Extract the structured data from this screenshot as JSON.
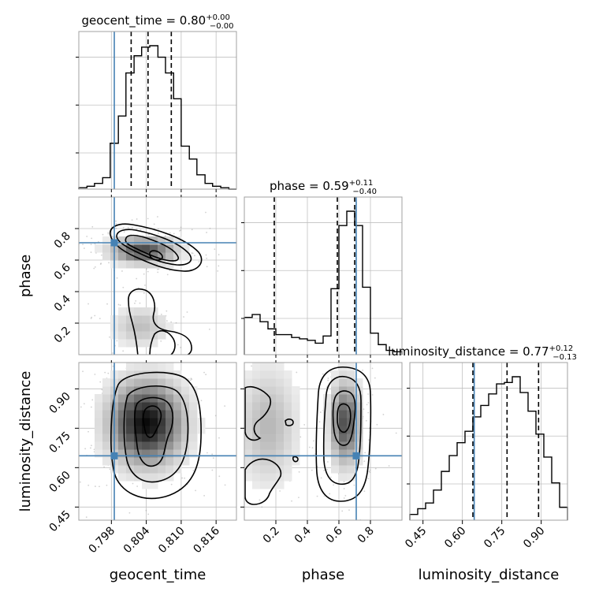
{
  "chart_data": {
    "type": "corner",
    "parameters": [
      "geocent_time",
      "phase",
      "luminosity_distance"
    ],
    "titles": [
      {
        "name": "geocent_time",
        "value": "0.80",
        "plus": "+0.00",
        "minus": "−0.00"
      },
      {
        "name": "phase",
        "value": "0.59",
        "plus": "+0.11",
        "minus": "−0.40"
      },
      {
        "name": "luminosity_distance",
        "value": "0.77",
        "plus": "+0.12",
        "minus": "−0.13"
      }
    ],
    "axis_labels": {
      "x": [
        "geocent_time",
        "phase",
        "luminosity_distance"
      ],
      "y": [
        "phase",
        "luminosity_distance"
      ]
    },
    "ranges": {
      "geocent_time": [
        0.7924,
        0.8195
      ],
      "phase": [
        0.0,
        1.0
      ],
      "luminosity_distance": [
        0.4,
        1.0
      ]
    },
    "ticks": {
      "geocent_time": [
        "0.798",
        "0.804",
        "0.810",
        "0.816"
      ],
      "phase": [
        "0.2",
        "0.4",
        "0.6",
        "0.8"
      ],
      "luminosity_distance": [
        "0.45",
        "0.60",
        "0.75",
        "0.90"
      ]
    },
    "truths": {
      "geocent_time": 0.7985,
      "phase": 0.71,
      "luminosity_distance": 0.645
    },
    "quantiles": {
      "geocent_time": [
        0.8014,
        0.8043,
        0.8083
      ],
      "phase": [
        0.19,
        0.59,
        0.7
      ],
      "luminosity_distance": [
        0.64,
        0.77,
        0.89
      ]
    },
    "histograms": {
      "geocent_time": {
        "edges": [
          0.7924,
          0.7938,
          0.7951,
          0.7965,
          0.7978,
          0.7992,
          0.8005,
          0.8019,
          0.8032,
          0.8046,
          0.806,
          0.8073,
          0.8087,
          0.81,
          0.8114,
          0.8127,
          0.8141,
          0.8154,
          0.8168,
          0.8182,
          0.8195
        ],
        "counts": [
          0.01,
          0.02,
          0.04,
          0.08,
          0.32,
          0.51,
          0.81,
          0.93,
          0.99,
          1.0,
          0.92,
          0.81,
          0.63,
          0.3,
          0.21,
          0.1,
          0.04,
          0.02,
          0.01,
          0.0
        ]
      },
      "phase": {
        "edges": [
          0.0,
          0.05,
          0.1,
          0.15,
          0.2,
          0.25,
          0.3,
          0.35,
          0.4,
          0.45,
          0.5,
          0.55,
          0.6,
          0.65,
          0.7,
          0.75,
          0.8,
          0.85,
          0.9,
          0.95,
          1.0
        ],
        "counts": [
          0.26,
          0.28,
          0.23,
          0.18,
          0.14,
          0.14,
          0.12,
          0.11,
          0.1,
          0.08,
          0.13,
          0.46,
          0.9,
          1.0,
          0.9,
          0.47,
          0.15,
          0.07,
          0.03,
          0.02
        ]
      },
      "luminosity_distance": {
        "edges": [
          0.4,
          0.43,
          0.46,
          0.49,
          0.52,
          0.55,
          0.58,
          0.61,
          0.64,
          0.67,
          0.7,
          0.73,
          0.76,
          0.79,
          0.82,
          0.85,
          0.88,
          0.91,
          0.94,
          0.97,
          1.0
        ],
        "counts": [
          0.04,
          0.08,
          0.12,
          0.21,
          0.34,
          0.45,
          0.54,
          0.62,
          0.72,
          0.8,
          0.88,
          0.95,
          0.96,
          1.0,
          0.89,
          0.76,
          0.6,
          0.44,
          0.26,
          0.09
        ]
      }
    },
    "pairs": [
      {
        "x": "geocent_time",
        "y": "phase"
      },
      {
        "x": "geocent_time",
        "y": "luminosity_distance"
      },
      {
        "x": "phase",
        "y": "luminosity_distance"
      }
    ],
    "colors": {
      "truth": "#4682b4",
      "hist": "#000000",
      "grid": "#c0c0c0",
      "frame": "#a0a0a0",
      "points": "#9a9a9a"
    }
  }
}
